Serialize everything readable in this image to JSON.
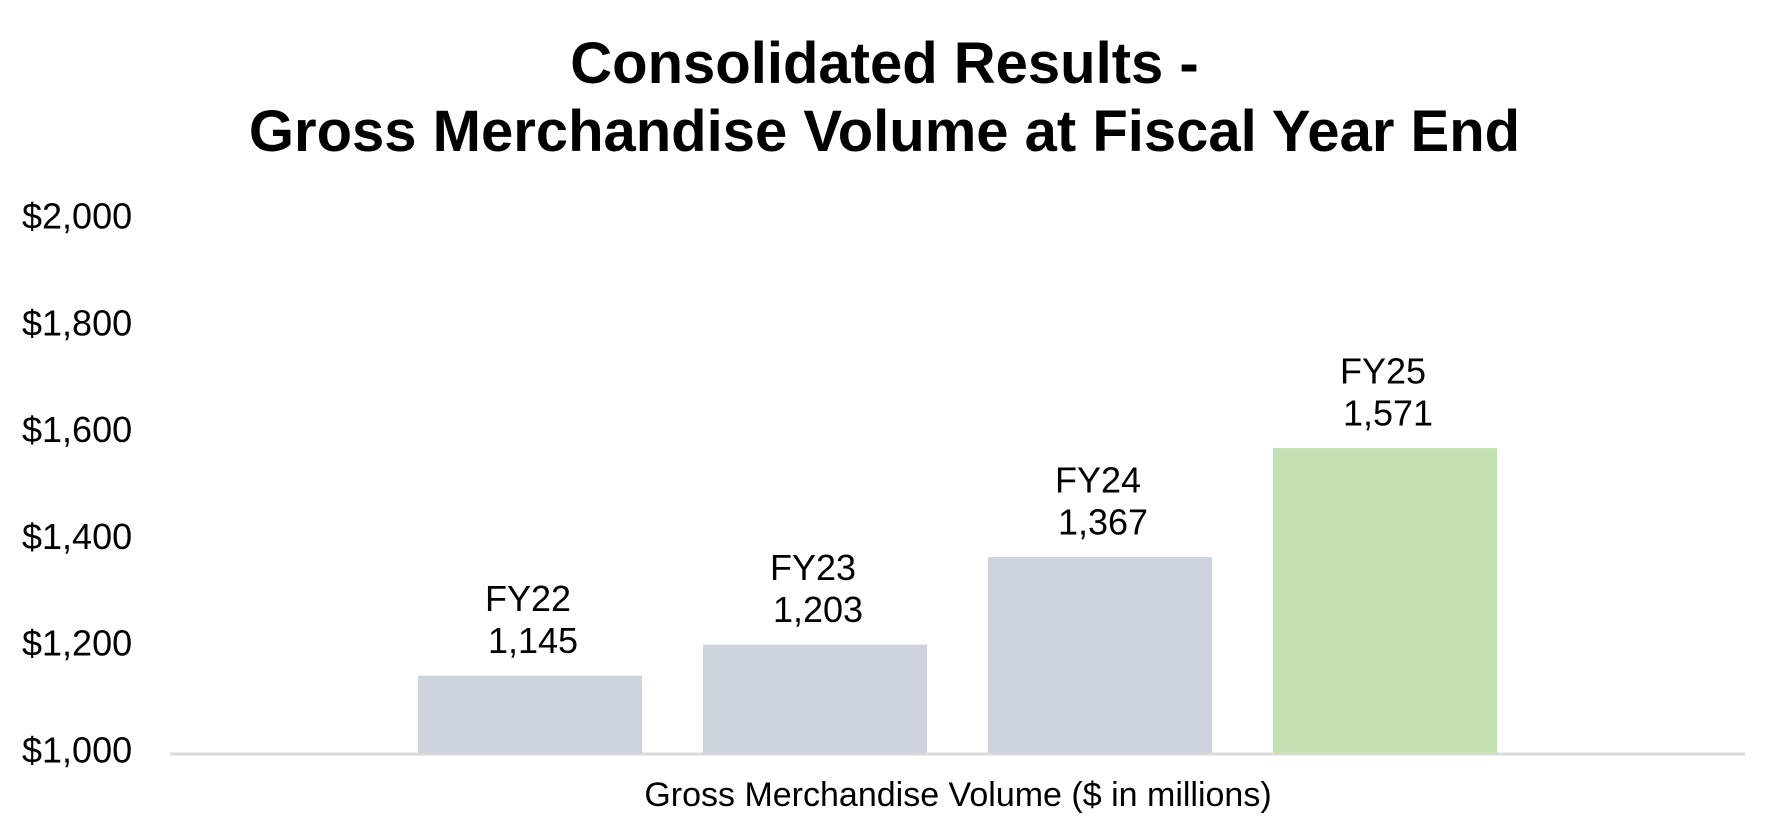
{
  "chart_data": {
    "type": "bar",
    "title": "Consolidated Results -",
    "subtitle": "Gross Merchandise Volume at Fiscal Year End",
    "xlabel": "Gross Merchandise Volume ($ in millions)",
    "ylabel": "",
    "categories": [
      "FY22",
      "FY23",
      "FY24",
      "FY25"
    ],
    "values": [
      1145,
      1203,
      1367,
      1571
    ],
    "value_labels": [
      "1,145",
      "1,203",
      "1,367",
      "1,571"
    ],
    "bar_colors": [
      "#cdd4de",
      "#cdd4de",
      "#cdd4de",
      "#c5e0b3"
    ],
    "ylim": [
      1000,
      2000
    ],
    "yticks": [
      1000,
      1200,
      1400,
      1600,
      1800,
      2000
    ],
    "ytick_labels": [
      "$1,000",
      "$1,200",
      "$1,400",
      "$1,600",
      "$1,800",
      "$2,000"
    ],
    "grid": false,
    "legend": "none",
    "axis_color": "#d9d9d9"
  }
}
